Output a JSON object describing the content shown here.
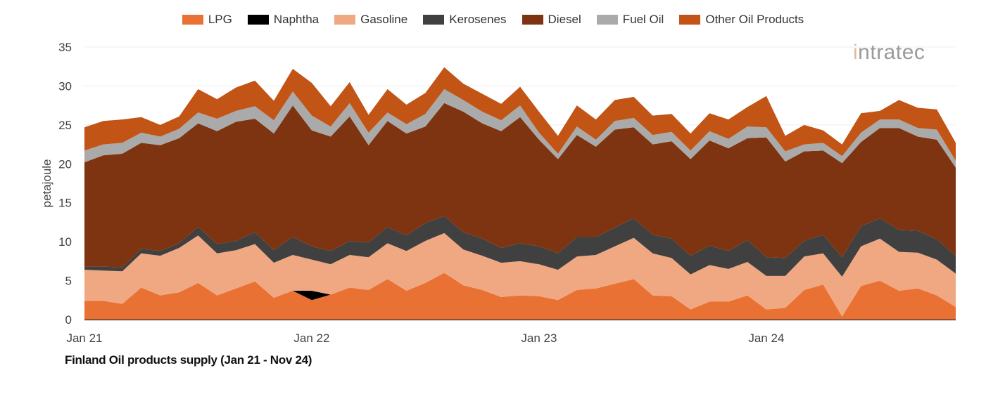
{
  "chart_data": {
    "type": "area",
    "stacked": true,
    "title": "Finland Oil products supply (Jan 21 - Nov 24)",
    "ylabel": "petajoule",
    "xlabel": "",
    "ylim": [
      0,
      35
    ],
    "y_ticks": [
      0,
      5,
      10,
      15,
      20,
      25,
      30,
      35
    ],
    "x_period": "monthly, Jan 21 - Nov 24",
    "x_ticks": [
      {
        "label": "Jan 21",
        "index": 0
      },
      {
        "label": "Jan 22",
        "index": 12
      },
      {
        "label": "Jan 23",
        "index": 24
      },
      {
        "label": "Jan 24",
        "index": 36
      }
    ],
    "grid": true,
    "legend_position": "top",
    "series": [
      {
        "name": "LPG",
        "color": "#E87133",
        "values": [
          2.4,
          2.4,
          2.0,
          4.1,
          3.1,
          3.5,
          4.7,
          3.1,
          4.0,
          4.9,
          2.8,
          3.7,
          2.5,
          3.2,
          4.1,
          3.8,
          5.2,
          3.7,
          4.7,
          6.0,
          4.4,
          3.8,
          2.9,
          3.1,
          3.0,
          2.5,
          3.8,
          4.0,
          4.6,
          5.2,
          3.1,
          3.0,
          1.3,
          2.3,
          2.3,
          3.1,
          1.3,
          1.5,
          3.8,
          4.5,
          0.4,
          4.3,
          5.0,
          3.7,
          4.0,
          3.1,
          1.6
        ]
      },
      {
        "name": "Naphtha",
        "color": "#000000",
        "values": [
          0,
          0,
          0,
          0,
          0,
          0,
          0,
          0,
          0,
          0,
          0,
          0,
          1.2,
          0,
          0,
          0,
          0,
          0,
          0,
          0,
          0,
          0,
          0,
          0,
          0,
          0,
          0,
          0,
          0,
          0,
          0,
          0,
          0,
          0,
          0,
          0,
          0,
          0,
          0,
          0,
          0,
          0,
          0,
          0,
          0,
          0,
          0
        ]
      },
      {
        "name": "Gasoline",
        "color": "#F0A882",
        "values": [
          4.0,
          3.9,
          4.2,
          4.4,
          5.1,
          5.7,
          6.1,
          5.4,
          4.9,
          4.8,
          4.5,
          4.6,
          4.0,
          3.9,
          4.2,
          4.2,
          4.6,
          5.1,
          5.4,
          5.1,
          4.6,
          4.4,
          4.4,
          4.4,
          4.1,
          3.9,
          4.3,
          4.3,
          4.8,
          5.3,
          5.4,
          4.9,
          4.5,
          4.7,
          4.2,
          4.3,
          4.3,
          4.1,
          4.3,
          4.0,
          5.1,
          5.1,
          5.4,
          5.0,
          4.6,
          4.6,
          4.3
        ]
      },
      {
        "name": "Kerosenes",
        "color": "#404040",
        "values": [
          0.4,
          0.5,
          0.5,
          0.6,
          0.6,
          0.6,
          1.1,
          1.2,
          1.2,
          1.5,
          1.6,
          2.3,
          1.7,
          1.7,
          1.8,
          1.9,
          2.1,
          2.0,
          2.3,
          2.2,
          2.2,
          2.2,
          1.9,
          2.3,
          2.3,
          2.1,
          2.5,
          2.3,
          2.4,
          2.5,
          2.4,
          2.5,
          2.4,
          2.5,
          2.3,
          2.8,
          2.4,
          2.3,
          2.0,
          2.4,
          2.5,
          2.6,
          2.6,
          2.8,
          2.8,
          2.6,
          2.3
        ]
      },
      {
        "name": "Diesel",
        "color": "#7E3410",
        "values": [
          13.4,
          14.3,
          14.6,
          13.6,
          13.6,
          13.5,
          13.3,
          14.5,
          15.3,
          14.6,
          15.0,
          16.9,
          14.9,
          14.7,
          16.0,
          12.5,
          13.6,
          13.1,
          12.4,
          14.5,
          15.5,
          14.8,
          15.0,
          16.2,
          13.7,
          12.1,
          13.1,
          11.6,
          12.6,
          11.7,
          11.6,
          12.5,
          12.4,
          13.5,
          13.2,
          13.1,
          15.4,
          12.4,
          11.5,
          10.8,
          12.1,
          10.8,
          11.6,
          13.1,
          12.1,
          12.8,
          11.3
        ]
      },
      {
        "name": "Fuel Oil",
        "color": "#AAAAAA",
        "values": [
          1.5,
          1.4,
          1.4,
          1.3,
          1.1,
          1.2,
          1.4,
          1.6,
          1.4,
          1.6,
          1.7,
          1.8,
          1.9,
          1.3,
          1.7,
          1.6,
          1.1,
          1.2,
          1.6,
          1.8,
          1.5,
          1.5,
          1.4,
          1.5,
          0.9,
          0.7,
          1.1,
          0.9,
          1.1,
          1.2,
          1.2,
          1.2,
          1.1,
          1.2,
          1.2,
          1.5,
          1.3,
          1.3,
          0.9,
          1.0,
          0.9,
          1.2,
          1.1,
          1.1,
          1.1,
          1.3,
          0.9
        ]
      },
      {
        "name": "Other Oil Products",
        "color": "#C25416",
        "values": [
          3.0,
          3.0,
          3.0,
          2.0,
          1.5,
          1.6,
          3.0,
          2.5,
          3.0,
          3.3,
          2.5,
          2.9,
          4.2,
          2.6,
          2.7,
          2.3,
          3.0,
          2.5,
          2.7,
          2.8,
          2.1,
          2.3,
          2.1,
          2.4,
          2.7,
          2.3,
          2.7,
          2.6,
          2.7,
          2.7,
          2.5,
          2.3,
          2.2,
          2.3,
          2.5,
          2.5,
          4.0,
          2.0,
          2.5,
          1.6,
          1.5,
          2.5,
          1.1,
          2.5,
          2.6,
          2.6,
          2.3
        ]
      }
    ]
  },
  "logo": {
    "text": "intratec"
  }
}
